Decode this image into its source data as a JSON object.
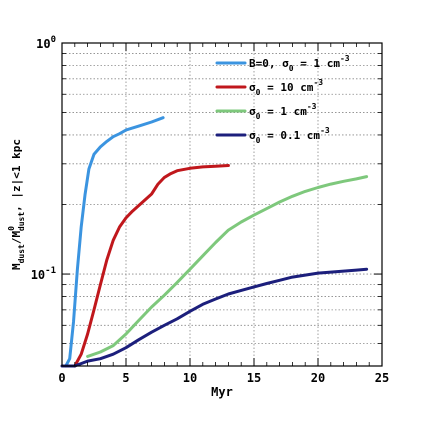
{
  "chart_data": {
    "type": "line",
    "xlabel": "Myr",
    "ylabel": {
      "main": "M",
      "sub1": "dust",
      "mid": "/M",
      "sup2": "0",
      "sub2": "dust",
      "tail": ", |z|<1 kpc"
    },
    "xlim": [
      0,
      25
    ],
    "ylim": [
      0.04,
      1.0
    ],
    "yscale": "log",
    "grid": true,
    "legend_position": "top-right",
    "x_ticks": [
      {
        "value": 0,
        "label": "0"
      },
      {
        "value": 5,
        "label": "5"
      },
      {
        "value": 10,
        "label": "10"
      },
      {
        "value": 15,
        "label": "15"
      },
      {
        "value": 20,
        "label": "20"
      },
      {
        "value": 25,
        "label": "25"
      }
    ],
    "y_major_ticks": [
      {
        "value": 0.1,
        "label_base": "10",
        "label_exp": "-1"
      },
      {
        "value": 1.0,
        "label_base": "10",
        "label_exp": "0"
      }
    ],
    "y_minor_ticks": [
      0.05,
      0.06,
      0.07,
      0.08,
      0.09,
      0.2,
      0.3,
      0.4,
      0.5,
      0.6,
      0.7,
      0.8,
      0.9
    ],
    "series": [
      {
        "legend": {
          "prefix": "B=0, σ",
          "sub": "0",
          "mid": " = 1 cm",
          "sup": "-3"
        },
        "color": "#3b94e0",
        "x": [
          0.3,
          0.6,
          0.9,
          1.2,
          1.5,
          1.8,
          2.1,
          2.5,
          3.0,
          3.5,
          4.0,
          4.5,
          5.0,
          6.0,
          7.0,
          7.9
        ],
        "y": [
          0.04,
          0.043,
          0.062,
          0.105,
          0.16,
          0.22,
          0.285,
          0.33,
          0.355,
          0.375,
          0.393,
          0.405,
          0.42,
          0.437,
          0.455,
          0.475
        ]
      },
      {
        "legend": {
          "prefix": "σ",
          "sub": "0",
          "mid": " = 10 cm",
          "sup": "-3"
        },
        "color": "#c0171c",
        "x": [
          1.0,
          1.5,
          2.0,
          2.5,
          3.0,
          3.5,
          4.0,
          4.5,
          5.0,
          5.5,
          6.0,
          7.0,
          7.5,
          8.0,
          8.5,
          9.0,
          10.0,
          11.0,
          12.0,
          13.0
        ],
        "y": [
          0.04,
          0.045,
          0.055,
          0.07,
          0.09,
          0.115,
          0.14,
          0.16,
          0.175,
          0.187,
          0.198,
          0.222,
          0.245,
          0.262,
          0.272,
          0.28,
          0.287,
          0.291,
          0.293,
          0.295
        ]
      },
      {
        "legend": {
          "prefix": "σ",
          "sub": "0",
          "mid": " = 1 cm",
          "sup": "-3"
        },
        "color": "#7ec87c",
        "x": [
          2.0,
          3.0,
          4.0,
          5.0,
          6.0,
          7.0,
          8.0,
          9.0,
          10.0,
          11.0,
          12.0,
          13.0,
          14.0,
          15.0,
          16.0,
          17.0,
          18.0,
          19.0,
          20.0,
          21.0,
          22.0,
          23.0,
          23.8
        ],
        "y": [
          0.044,
          0.046,
          0.049,
          0.055,
          0.063,
          0.072,
          0.081,
          0.092,
          0.105,
          0.12,
          0.137,
          0.155,
          0.168,
          0.18,
          0.192,
          0.205,
          0.217,
          0.228,
          0.237,
          0.245,
          0.252,
          0.258,
          0.264
        ]
      },
      {
        "legend": {
          "prefix": "σ",
          "sub": "0",
          "mid": " = 0.1 cm",
          "sup": "-3"
        },
        "color": "#1c1f7c",
        "x": [
          0.0,
          1.0,
          2.0,
          3.0,
          4.0,
          5.0,
          6.0,
          7.0,
          8.0,
          9.0,
          10.0,
          11.0,
          12.0,
          13.0,
          14.0,
          15.0,
          16.0,
          17.0,
          18.0,
          19.0,
          20.0,
          21.0,
          22.0,
          23.0,
          23.8
        ],
        "y": [
          0.04,
          0.04,
          0.042,
          0.043,
          0.045,
          0.048,
          0.052,
          0.056,
          0.06,
          0.064,
          0.069,
          0.074,
          0.078,
          0.082,
          0.085,
          0.088,
          0.091,
          0.094,
          0.097,
          0.099,
          0.101,
          0.102,
          0.103,
          0.104,
          0.105
        ]
      }
    ]
  }
}
